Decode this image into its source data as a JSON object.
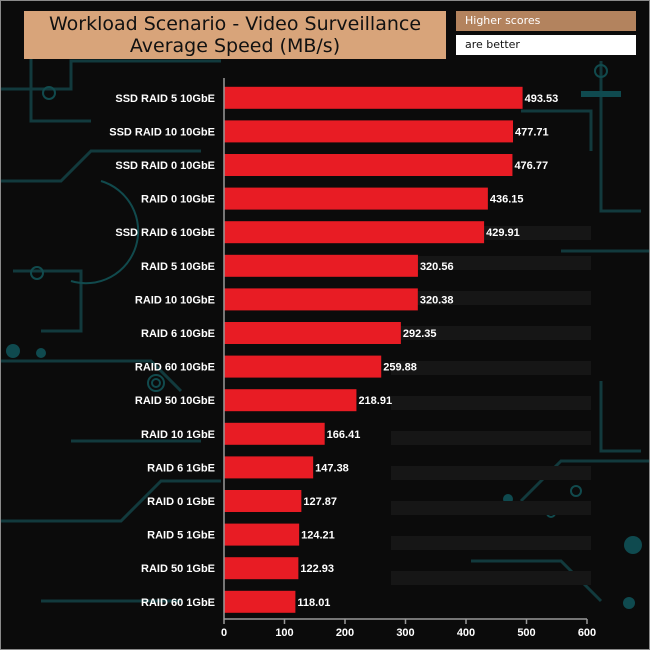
{
  "header": {
    "title_line1": "Workload Scenario - Video Surveillance",
    "title_line2": "Average Speed (MB/s)",
    "note_line1": "Higher scores",
    "note_line2": "are better"
  },
  "colors": {
    "bar": "#e81c24",
    "axis": "#9a9a9a",
    "text": "#ffffff"
  },
  "chart_data": {
    "type": "bar",
    "orientation": "horizontal",
    "title": "Workload Scenario - Video Surveillance Average Speed (MB/s)",
    "categories": [
      "SSD RAID 5 10GbE",
      "SSD RAID 10 10GbE",
      "SSD RAID 0 10GbE",
      "RAID 0 10GbE",
      "SSD RAID 6 10GbE",
      "RAID 5 10GbE",
      "RAID 10 10GbE",
      "RAID 6 10GbE",
      "RAID 60 10GbE",
      "RAID 50 10GbE",
      "RAID 10 1GbE",
      "RAID 6 1GbE",
      "RAID 0 1GbE",
      "RAID 5 1GbE",
      "RAID 50 1GbE",
      "RAID 60 1GbE"
    ],
    "values": [
      493.53,
      477.71,
      476.77,
      436.15,
      429.91,
      320.56,
      320.38,
      292.35,
      259.88,
      218.91,
      166.41,
      147.38,
      127.87,
      124.21,
      122.93,
      118.01
    ],
    "value_labels": [
      "493.53",
      "477.71",
      "476.77",
      "436.15",
      "429.91",
      "320.56",
      "320.38",
      "292.35",
      "259.88",
      "218.91",
      "166.41",
      "147.38",
      "127.87",
      "124.21",
      "122.93",
      "118.01"
    ],
    "xlim": [
      0,
      600
    ],
    "xticks": [
      0,
      100,
      200,
      300,
      400,
      500,
      600
    ],
    "xtick_labels": [
      "0",
      "100",
      "200",
      "300",
      "400",
      "500",
      "600"
    ],
    "xlabel": "",
    "ylabel": "",
    "grid": false,
    "legend": "none"
  }
}
